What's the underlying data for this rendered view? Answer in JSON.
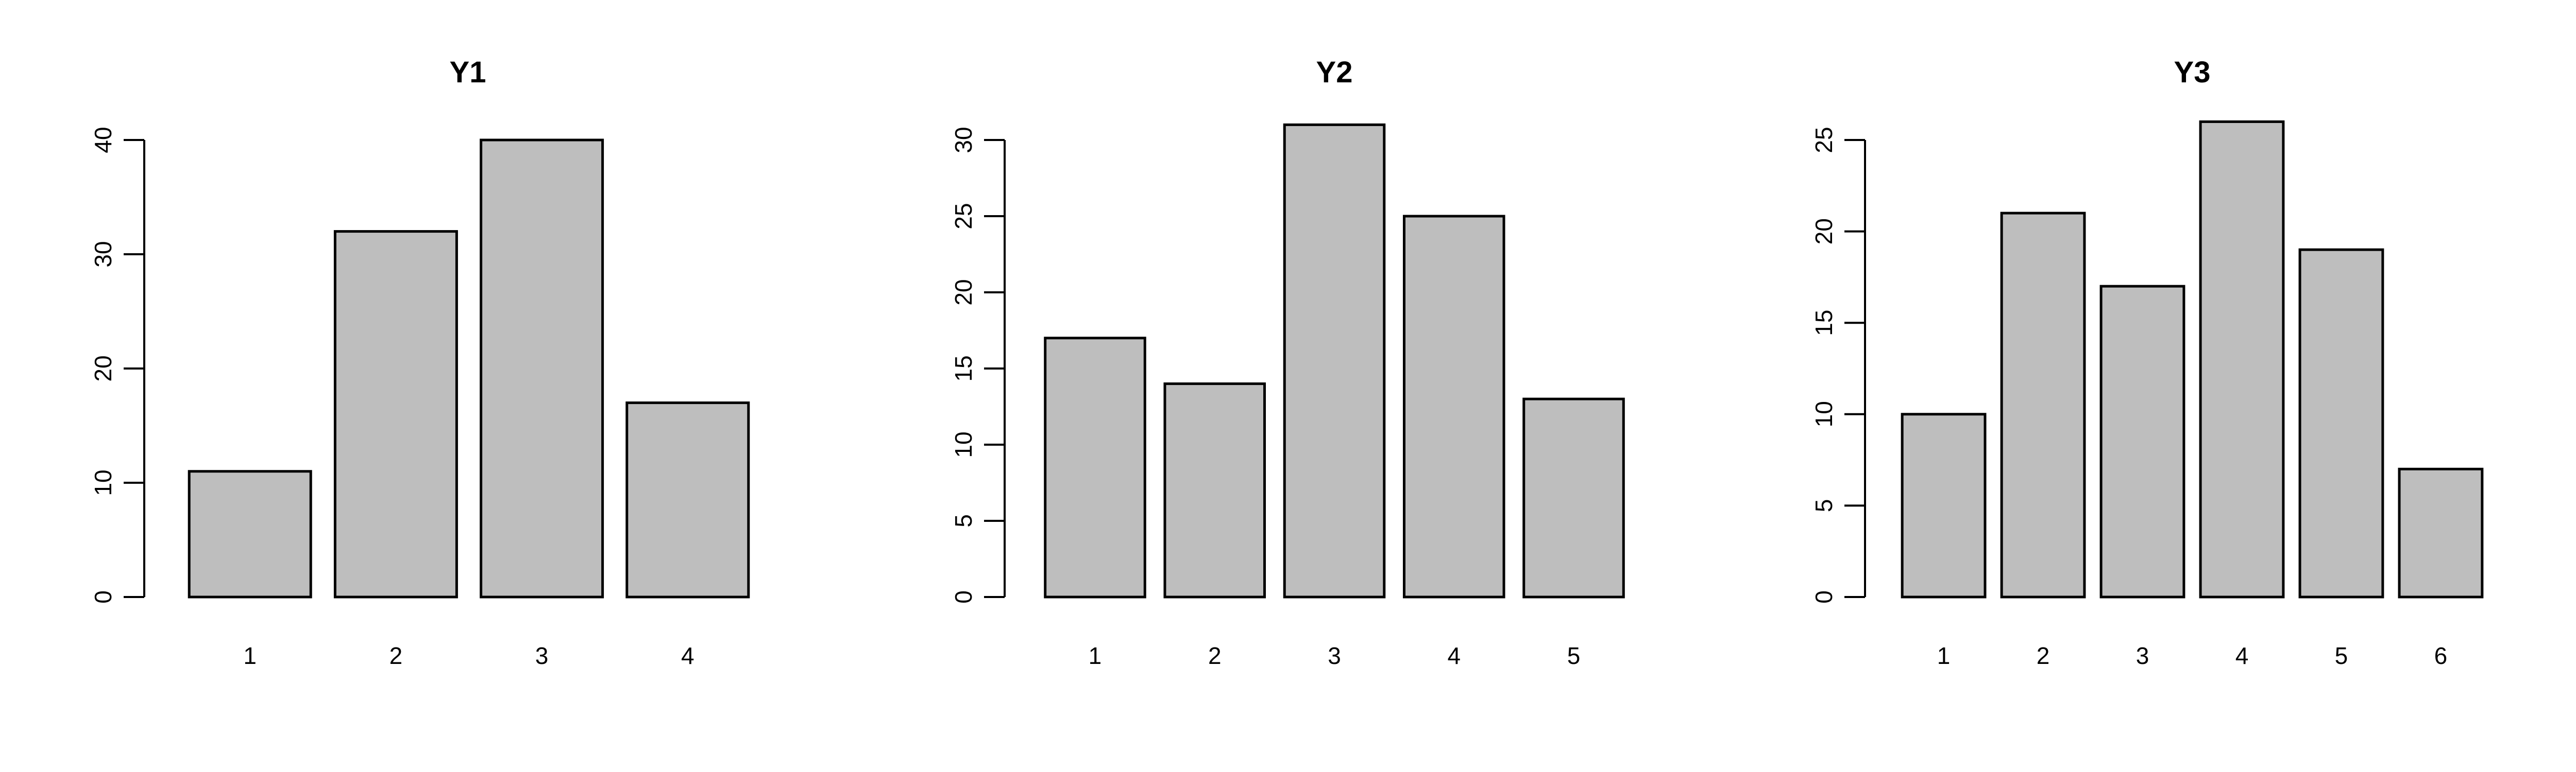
{
  "chart_data": [
    {
      "type": "bar",
      "title": "Y1",
      "xlabel": "",
      "ylabel": "",
      "categories": [
        "1",
        "2",
        "3",
        "4"
      ],
      "values": [
        11,
        32,
        40,
        17
      ],
      "ylim": [
        0,
        40
      ],
      "yticks": [
        0,
        10,
        20,
        30,
        40
      ],
      "bar_color": "#bebebe",
      "grid": false,
      "legend": "none"
    },
    {
      "type": "bar",
      "title": "Y2",
      "xlabel": "",
      "ylabel": "",
      "categories": [
        "1",
        "2",
        "3",
        "4",
        "5"
      ],
      "values": [
        17,
        14,
        31,
        25,
        13
      ],
      "ylim": [
        0,
        30
      ],
      "yticks": [
        0,
        5,
        10,
        15,
        20,
        25,
        30
      ],
      "bar_color": "#bebebe",
      "grid": false,
      "legend": "none"
    },
    {
      "type": "bar",
      "title": "Y3",
      "xlabel": "",
      "ylabel": "",
      "categories": [
        "1",
        "2",
        "3",
        "4",
        "5",
        "6"
      ],
      "values": [
        10,
        21,
        17,
        26,
        19,
        7
      ],
      "ylim": [
        0,
        25
      ],
      "yticks": [
        0,
        5,
        10,
        15,
        20,
        25
      ],
      "bar_color": "#bebebe",
      "grid": false,
      "legend": "none"
    }
  ]
}
